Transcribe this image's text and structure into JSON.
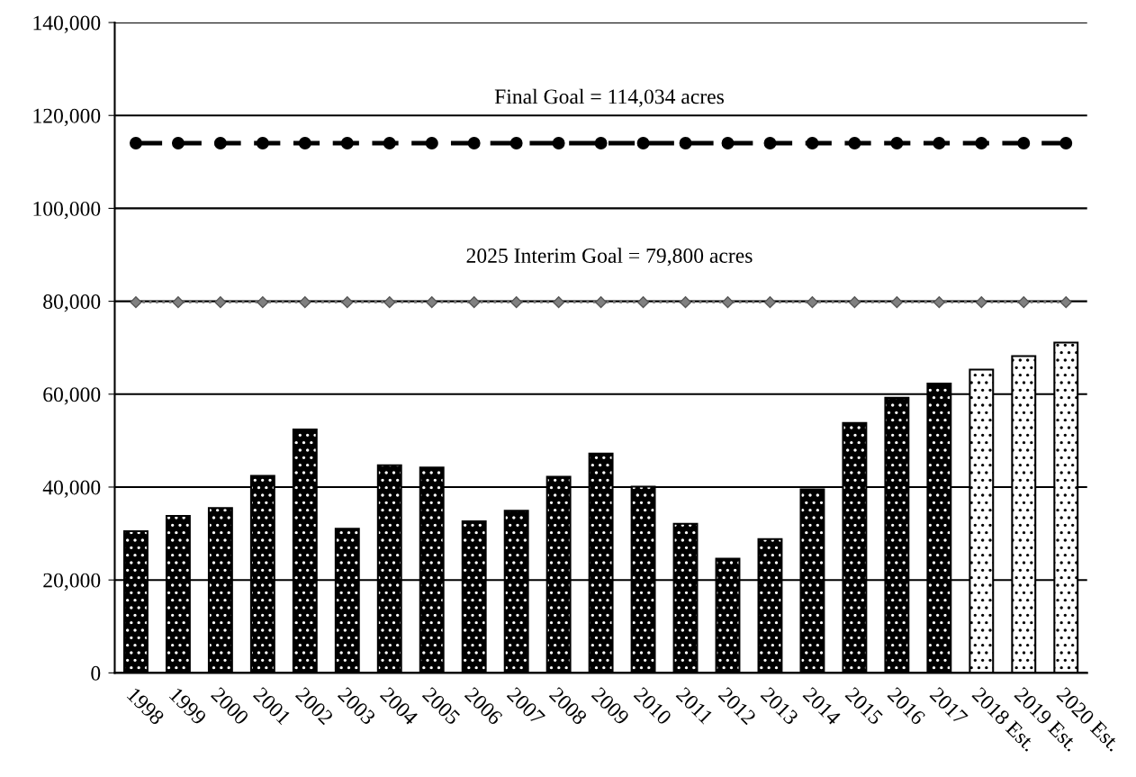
{
  "chart_data": {
    "type": "bar",
    "categories": [
      "1998",
      "1999",
      "2000",
      "2001",
      "2002",
      "2003",
      "2004",
      "2005",
      "2006",
      "2007",
      "2008",
      "2009",
      "2010",
      "2011",
      "2012",
      "2013",
      "2014",
      "2015",
      "2016",
      "2017",
      "2018 Est.",
      "2019 Est.",
      "2020 Est."
    ],
    "series": [
      {
        "values": [
          30500,
          33800,
          35500,
          42400,
          52400,
          31000,
          44700,
          44200,
          32600,
          34900,
          42200,
          47200,
          40100,
          32100,
          24600,
          28800,
          39500,
          53800,
          59200,
          62300,
          65300,
          68200,
          71100
        ],
        "colors": [
          "#000000",
          "#000000",
          "#000000",
          "#000000",
          "#000000",
          "#000000",
          "#000000",
          "#000000",
          "#000000",
          "#000000",
          "#000000",
          "#000000",
          "#000000",
          "#000000",
          "#000000",
          "#000000",
          "#000000",
          "#000000",
          "#000000",
          "#000000",
          "#ffffff",
          "#ffffff",
          "#ffffff"
        ]
      },
      {
        "type": "line",
        "color": "#000000",
        "marker": "circle",
        "line_style": "dashed",
        "values": [
          114034,
          114034,
          114034,
          114034,
          114034,
          114034,
          114034,
          114034,
          114034,
          114034,
          114034,
          114034,
          114034,
          114034,
          114034,
          114034,
          114034,
          114034,
          114034,
          114034,
          114034,
          114034,
          114034
        ]
      },
      {
        "type": "line",
        "color": "#808080",
        "marker": "diamond",
        "line_style": "dotted",
        "values": [
          79800,
          79800,
          79800,
          79800,
          79800,
          79800,
          79800,
          79800,
          79800,
          79800,
          79800,
          79800,
          79800,
          79800,
          79800,
          79800,
          79800,
          79800,
          79800,
          79800,
          79800,
          79800,
          79800
        ]
      }
    ],
    "annotations": [
      {
        "text": "Final Goal = 114,034 acres",
        "x": "2009",
        "y": 114034
      },
      {
        "text": "2025 Interim Goal = 79,800 acres",
        "x": "2009",
        "y": 79800
      }
    ],
    "ylim": [
      0,
      140000
    ],
    "yticks": [
      {
        "value": 0,
        "label": "0"
      },
      {
        "value": 20000,
        "label": "20,000"
      },
      {
        "value": 40000,
        "label": "40,000"
      },
      {
        "value": 60000,
        "label": "60,000"
      },
      {
        "value": 80000,
        "label": "80,000"
      },
      {
        "value": 100000,
        "label": "100,000"
      },
      {
        "value": 120000,
        "label": "120,000"
      },
      {
        "value": 140000,
        "label": "140,000"
      }
    ],
    "grid": "y",
    "legend": false
  }
}
